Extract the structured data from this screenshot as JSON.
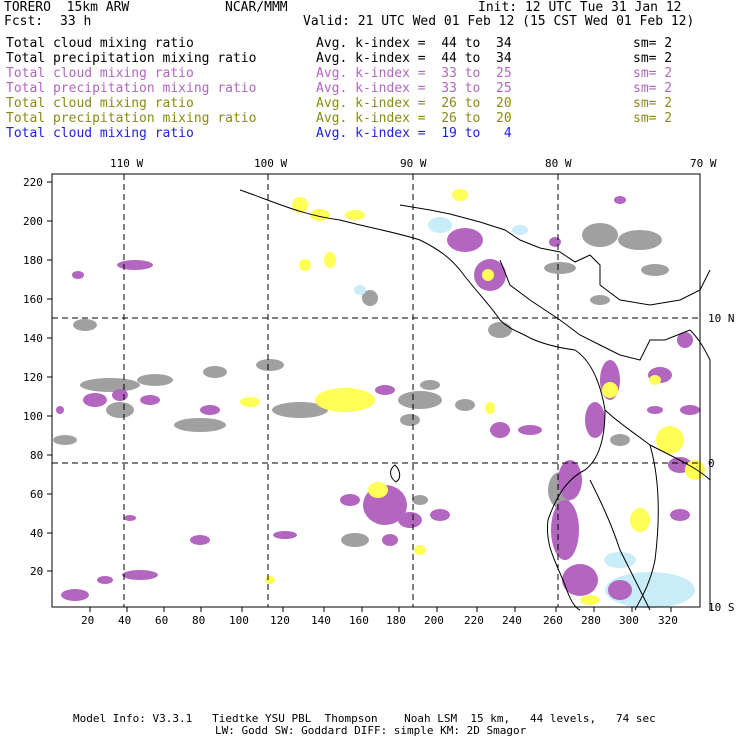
{
  "header": {
    "model": "TORERO  15km ARW",
    "org": "NCAR/MMM",
    "init": "Init: 12 UTC Tue 31 Jan 12",
    "fcst_label": "Fcst:",
    "fcst_hours": "33 h",
    "valid": "Valid: 21 UTC Wed 01 Feb 12 (15 CST Wed 01 Feb 12)"
  },
  "legend": [
    {
      "field": "Total cloud mixing ratio",
      "range": "Avg. k-index =  44 to  34",
      "sm": "sm= 2",
      "color": "#000000"
    },
    {
      "field": "Total precipitation mixing ratio",
      "range": "Avg. k-index =  44 to  34",
      "sm": "sm= 2",
      "color": "#000000"
    },
    {
      "field": "Total cloud mixing ratio",
      "range": "Avg. k-index =  33 to  25",
      "sm": "sm= 2",
      "color": "#b266c0"
    },
    {
      "field": "Total precipitation mixing ratio",
      "range": "Avg. k-index =  33 to  25",
      "sm": "sm= 2",
      "color": "#b266c0"
    },
    {
      "field": "Total cloud mixing ratio",
      "range": "Avg. k-index =  26 to  20",
      "sm": "sm= 2",
      "color": "#8a8a12"
    },
    {
      "field": "Total precipitation mixing ratio",
      "range": "Avg. k-index =  26 to  20",
      "sm": "sm= 2",
      "color": "#8a8a12"
    },
    {
      "field": "Total cloud mixing ratio",
      "range": "Avg. k-index =  19 to   4",
      "sm": "",
      "color": "#2020e0"
    }
  ],
  "map": {
    "lon_labels": [
      "110 W",
      "100 W",
      "90 W",
      "80 W",
      "70 W"
    ],
    "lat_labels": [
      "10 N",
      "0",
      "10 S"
    ],
    "x_ticks": [
      "20",
      "40",
      "60",
      "80",
      "100",
      "120",
      "140",
      "160",
      "180",
      "200",
      "220",
      "240",
      "260",
      "280",
      "300",
      "320"
    ],
    "y_ticks": [
      "20",
      "40",
      "60",
      "80",
      "100",
      "120",
      "140",
      "160",
      "180",
      "200",
      "220"
    ],
    "colors": {
      "gray": "#a0a0a0",
      "purple": "#b266c0",
      "yellow": "#ffff55",
      "lightblue": "#c8ecf8"
    }
  },
  "footer": {
    "line1": "Model Info: V3.3.1   Tiedtke YSU PBL  Thompson    Noah LSM  15 km,   44 levels,   74 sec",
    "line2": "LW: Godd SW: Goddard DIFF: simple KM: 2D Smagor"
  }
}
